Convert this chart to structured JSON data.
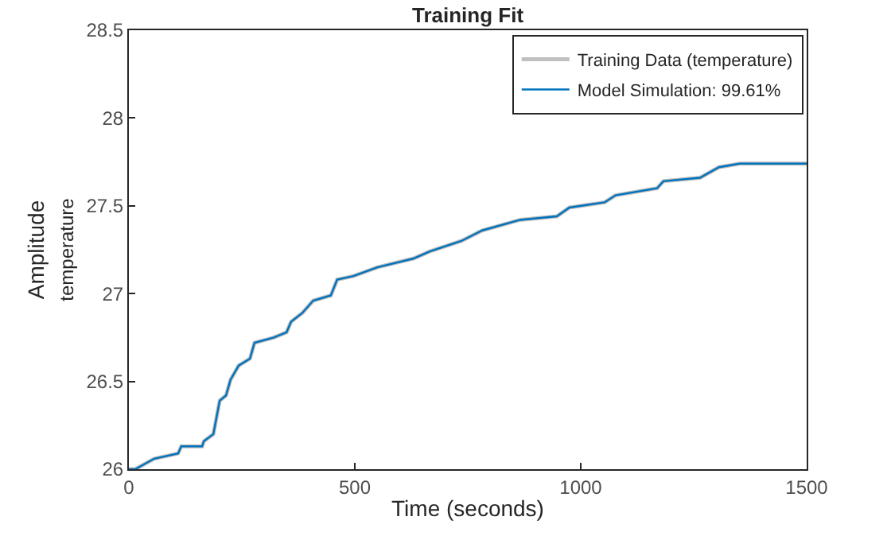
{
  "chart_data": {
    "type": "line",
    "title": "Training Fit",
    "xlabel": "Time (seconds)",
    "ylabel": "Amplitude",
    "annotations": [
      "temperature"
    ],
    "x": [
      0,
      14,
      56,
      109,
      116,
      162,
      166,
      187,
      201,
      215,
      225,
      243,
      268,
      278,
      321,
      349,
      359,
      384,
      408,
      447,
      461,
      497,
      550,
      630,
      666,
      736,
      782,
      866,
      947,
      975,
      1053,
      1077,
      1169,
      1183,
      1264,
      1306,
      1352,
      1500
    ],
    "series": [
      {
        "name": "Training Data (temperature)",
        "color": "#c0c0c0",
        "values": [
          26.0,
          26.0,
          26.06,
          26.09,
          26.13,
          26.13,
          26.16,
          26.2,
          26.39,
          26.42,
          26.51,
          26.59,
          26.63,
          26.72,
          26.75,
          26.78,
          26.84,
          26.89,
          26.96,
          26.99,
          27.08,
          27.1,
          27.15,
          27.2,
          27.24,
          27.3,
          27.36,
          27.42,
          27.44,
          27.49,
          27.52,
          27.56,
          27.6,
          27.64,
          27.66,
          27.72,
          27.74,
          27.74
        ]
      },
      {
        "name": "Model Simulation: 99.61%",
        "color": "#0072bd",
        "values": [
          26.0,
          26.0,
          26.06,
          26.09,
          26.13,
          26.13,
          26.16,
          26.2,
          26.39,
          26.42,
          26.51,
          26.59,
          26.63,
          26.72,
          26.75,
          26.78,
          26.84,
          26.89,
          26.96,
          26.99,
          27.08,
          27.1,
          27.15,
          27.2,
          27.24,
          27.3,
          27.36,
          27.42,
          27.44,
          27.49,
          27.52,
          27.56,
          27.6,
          27.64,
          27.66,
          27.72,
          27.74,
          27.74
        ]
      }
    ],
    "xlim": [
      0,
      1500
    ],
    "xticks": [
      0,
      500,
      1000,
      1500
    ],
    "ylim": [
      26,
      28.5
    ],
    "yticks": [
      26,
      26.5,
      27,
      27.5,
      28,
      28.5
    ],
    "grid": false,
    "legend": "top right",
    "marker": "none",
    "line_style": "solid"
  }
}
